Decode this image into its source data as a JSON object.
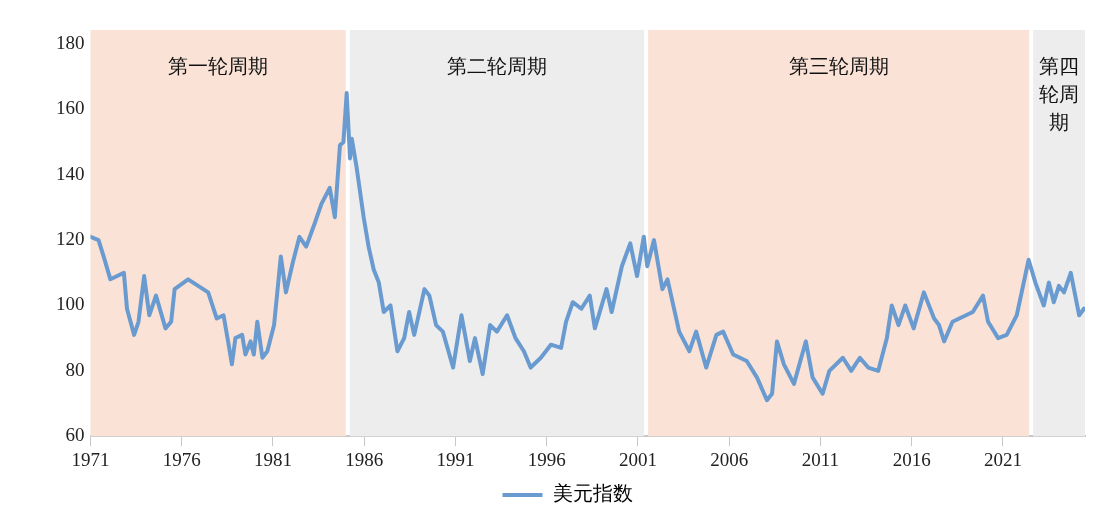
{
  "chart_data": {
    "type": "line",
    "x": [
      1971.0,
      1971.44,
      1971.72,
      1972.09,
      1972.83,
      1973.0,
      1973.39,
      1973.63,
      1973.94,
      1974.22,
      1974.59,
      1975.11,
      1975.42,
      1975.61,
      1976.35,
      1977.45,
      1977.92,
      1978.29,
      1978.57,
      1978.75,
      1978.94,
      1979.31,
      1979.49,
      1979.77,
      1979.95,
      1980.14,
      1980.42,
      1980.69,
      1981.06,
      1981.43,
      1981.71,
      1982.08,
      1982.45,
      1982.82,
      1983.28,
      1983.65,
      1984.11,
      1984.39,
      1984.67,
      1984.86,
      1985.04,
      1985.22,
      1985.32,
      1985.59,
      1985.97,
      1986.24,
      1986.52,
      1986.8,
      1987.07,
      1987.44,
      1987.82,
      1988.19,
      1988.46,
      1988.74,
      1989.3,
      1989.57,
      1989.94,
      1990.31,
      1990.87,
      1991.33,
      1991.79,
      1992.07,
      1992.49,
      1992.9,
      1993.27,
      1993.83,
      1994.29,
      1994.75,
      1995.12,
      1995.68,
      1996.23,
      1996.79,
      1997.06,
      1997.43,
      1997.9,
      1998.36,
      1998.64,
      1999.28,
      1999.56,
      2000.12,
      2000.58,
      2000.95,
      2001.32,
      2001.51,
      2001.88,
      2002.34,
      2002.62,
      2003.26,
      2003.82,
      2004.19,
      2004.74,
      2005.3,
      2005.67,
      2006.22,
      2006.96,
      2007.52,
      2008.07,
      2008.35,
      2008.62,
      2009.0,
      2009.55,
      2010.2,
      2010.57,
      2011.12,
      2011.49,
      2012.23,
      2012.69,
      2013.16,
      2013.62,
      2014.17,
      2014.64,
      2014.91,
      2015.28,
      2015.65,
      2016.11,
      2016.67,
      2017.23,
      2017.5,
      2017.78,
      2018.24,
      2019.35,
      2019.91,
      2020.19,
      2020.74,
      2021.21,
      2021.76,
      2022.41,
      2022.78,
      2023.24,
      2023.52,
      2023.79,
      2024.07,
      2024.35,
      2024.72,
      2025.18,
      2025.44
    ],
    "series": [
      {
        "name": "美元指数",
        "color": "#6a9bd0",
        "values": [
          121,
          120,
          115,
          108,
          110,
          99,
          91,
          95,
          109,
          97,
          103,
          93,
          95,
          105,
          108,
          104,
          96,
          97,
          88,
          82,
          90,
          91,
          85,
          89,
          85,
          95,
          84,
          86,
          94,
          115,
          104,
          113,
          121,
          118,
          125,
          131,
          136,
          127,
          149,
          150,
          165,
          145,
          151,
          142,
          127,
          118,
          111,
          107,
          98,
          100,
          86,
          90,
          98,
          91,
          105,
          103,
          94,
          92,
          81,
          97,
          83,
          90,
          79,
          94,
          92,
          97,
          90,
          86,
          81,
          84,
          88,
          87,
          95,
          101,
          99,
          103,
          93,
          105,
          98,
          112,
          119,
          109,
          121,
          112,
          120,
          105,
          108,
          92,
          86,
          92,
          81,
          91,
          92,
          85,
          83,
          78,
          71,
          73,
          89,
          82,
          76,
          89,
          78,
          73,
          80,
          84,
          80,
          84,
          81,
          80,
          90,
          100,
          94,
          100,
          93,
          104,
          96,
          94,
          89,
          95,
          98,
          103,
          95,
          90,
          91,
          97,
          114,
          107,
          100,
          107,
          101,
          106,
          104,
          110,
          97,
          99
        ]
      }
    ],
    "xlim": [
      1971,
      2025.5
    ],
    "xticks": [
      1971,
      1976,
      1981,
      1986,
      1991,
      1996,
      2001,
      2006,
      2011,
      2016,
      2021
    ],
    "ylim": [
      60,
      180
    ],
    "yticks": [
      60,
      80,
      100,
      120,
      140,
      160,
      180
    ],
    "bands": [
      {
        "axis": "x",
        "from": 1971,
        "to": 1985.1,
        "label": "第一轮周期",
        "color": "#fae3d6"
      },
      {
        "axis": "x",
        "from": 1985.1,
        "to": 2001.45,
        "label": "第二轮周期",
        "color": "#ededed"
      },
      {
        "axis": "x",
        "from": 2001.45,
        "to": 2022.55,
        "label": "第三轮周期",
        "color": "#fae3d6"
      },
      {
        "axis": "x",
        "from": 2022.55,
        "to": 2025.5,
        "label": "第四轮周期",
        "color": "#ededed"
      }
    ],
    "grid": false,
    "legend": "bottom",
    "marker": "none",
    "line_style": "solid"
  }
}
